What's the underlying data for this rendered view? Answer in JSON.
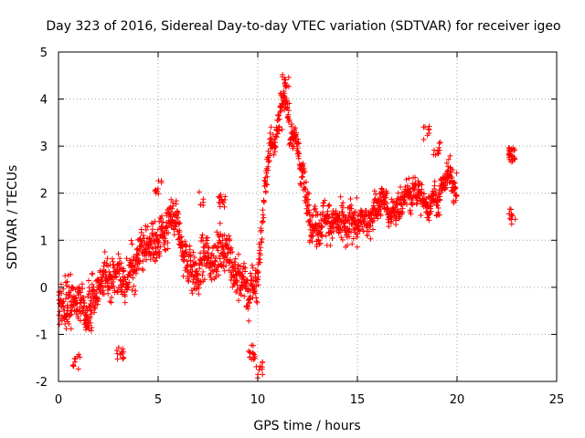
{
  "chart_data": {
    "type": "scatter",
    "title": "Day 323 of 2016, Sidereal Day-to-day VTEC variation (SDTVAR) for receiver igeo",
    "xlabel": "GPS time / hours",
    "ylabel": "SDTVAR / TECUs",
    "xlim": [
      0,
      25
    ],
    "ylim": [
      -2,
      5
    ],
    "xticks": [
      0,
      5,
      10,
      15,
      20,
      25
    ],
    "yticks": [
      -2,
      -1,
      0,
      1,
      2,
      3,
      4,
      5
    ],
    "grid": true,
    "marker": "plus",
    "color": "#ff0000",
    "series": [
      {
        "name": "SDTVAR",
        "trend": [
          [
            0.0,
            -0.4
          ],
          [
            0.3,
            -0.6
          ],
          [
            0.6,
            -0.5
          ],
          [
            1.0,
            -0.3
          ],
          [
            1.5,
            -0.6
          ],
          [
            2.0,
            -0.2
          ],
          [
            2.5,
            0.1
          ],
          [
            3.0,
            0.0
          ],
          [
            3.5,
            0.2
          ],
          [
            4.0,
            0.5
          ],
          [
            4.5,
            0.8
          ],
          [
            5.0,
            1.0
          ],
          [
            5.5,
            1.1
          ],
          [
            6.0,
            0.8
          ],
          [
            6.5,
            0.4
          ],
          [
            7.0,
            0.6
          ],
          [
            7.5,
            0.7
          ],
          [
            8.0,
            0.9
          ],
          [
            8.5,
            0.6
          ],
          [
            9.0,
            0.3
          ],
          [
            9.5,
            0.0
          ],
          [
            10.0,
            0.3
          ],
          [
            10.3,
            1.8
          ],
          [
            10.6,
            2.8
          ],
          [
            11.0,
            3.6
          ],
          [
            11.3,
            4.0
          ],
          [
            11.7,
            3.6
          ],
          [
            12.0,
            2.8
          ],
          [
            12.3,
            2.2
          ],
          [
            12.6,
            1.6
          ],
          [
            13.0,
            1.3
          ],
          [
            13.5,
            1.4
          ],
          [
            14.0,
            1.7
          ],
          [
            14.5,
            1.5
          ],
          [
            15.0,
            1.3
          ],
          [
            15.5,
            1.6
          ],
          [
            16.0,
            1.8
          ],
          [
            16.5,
            1.9
          ],
          [
            17.0,
            2.0
          ],
          [
            17.5,
            2.0
          ],
          [
            18.0,
            2.1
          ],
          [
            18.5,
            2.0
          ],
          [
            19.0,
            2.2
          ],
          [
            19.5,
            2.3
          ],
          [
            20.0,
            2.4
          ]
        ],
        "clusters": [
          {
            "x": 0.45,
            "y": 0.15,
            "n": 6
          },
          {
            "x": 0.9,
            "y": -1.6,
            "n": 10
          },
          {
            "x": 1.5,
            "y": -0.8,
            "n": 10
          },
          {
            "x": 3.1,
            "y": -1.4,
            "n": 12
          },
          {
            "x": 5.0,
            "y": 2.1,
            "n": 10
          },
          {
            "x": 7.1,
            "y": 1.9,
            "n": 6
          },
          {
            "x": 8.2,
            "y": 1.8,
            "n": 14
          },
          {
            "x": 9.7,
            "y": -1.4,
            "n": 14
          },
          {
            "x": 10.1,
            "y": -1.75,
            "n": 10
          },
          {
            "x": 11.4,
            "y": 4.4,
            "n": 10
          },
          {
            "x": 18.5,
            "y": 3.3,
            "n": 8
          },
          {
            "x": 19.0,
            "y": 2.95,
            "n": 10
          },
          {
            "x": 22.75,
            "y": 2.8,
            "n": 28
          },
          {
            "x": 22.75,
            "y": 1.5,
            "n": 12
          }
        ]
      }
    ]
  }
}
